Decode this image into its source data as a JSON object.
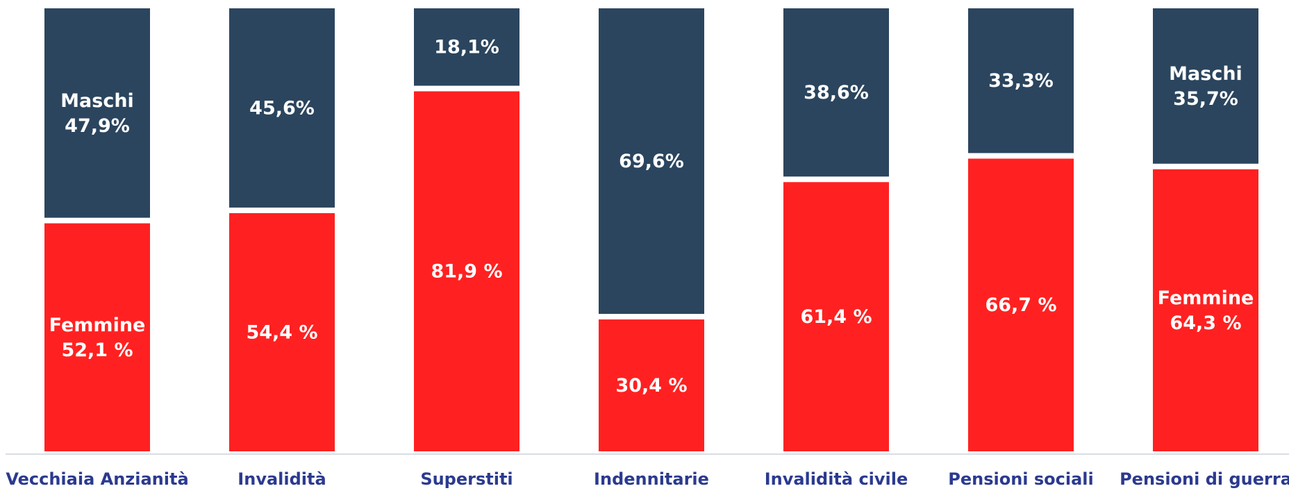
{
  "chart_data": {
    "type": "bar",
    "stacked": true,
    "categories": [
      "Vecchiaia Anzianità",
      "Invalidità",
      "Superstiti",
      "Indennitarie",
      "Invalidità civile",
      "Pensioni sociali",
      "Pensioni di guerra"
    ],
    "series": [
      {
        "name": "Femmine",
        "color": "#ff2121",
        "values": [
          52.1,
          54.4,
          81.9,
          30.4,
          61.4,
          66.7,
          64.3
        ],
        "labels": [
          "52,1 %",
          "54,4 %",
          "81,9 %",
          "30,4 %",
          "61,4 %",
          "66,7 %",
          "64,3 %"
        ],
        "name_shown": [
          true,
          false,
          false,
          false,
          false,
          false,
          true
        ]
      },
      {
        "name": "Maschi",
        "color": "#2b455e",
        "values": [
          47.9,
          45.6,
          18.1,
          69.6,
          38.6,
          33.3,
          35.7
        ],
        "labels": [
          "47,9%",
          "45,6%",
          "18,1%",
          "69,6%",
          "38,6%",
          "33,3%",
          "35,7%"
        ],
        "name_shown": [
          true,
          false,
          false,
          false,
          false,
          false,
          true
        ]
      }
    ],
    "ylim": [
      0,
      100
    ],
    "grid": false,
    "legend": "none",
    "category_label_color": "#2b3a8f",
    "baseline_color": "#d9dde3"
  }
}
